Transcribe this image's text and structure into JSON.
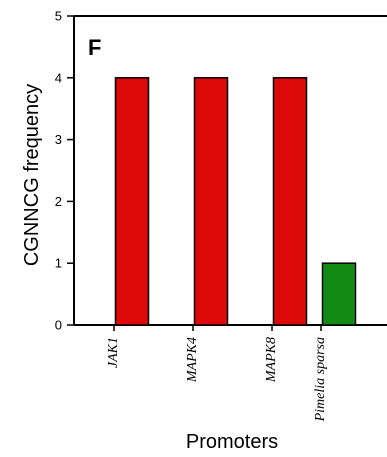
{
  "chart_data": {
    "type": "bar",
    "panel_label": "F",
    "categories": [
      "JAK1",
      "MAPK4",
      "MAPK8",
      "Pimelia sparsa"
    ],
    "values": [
      4,
      4,
      4,
      1
    ],
    "colors": [
      "#dd0a0a",
      "#dd0a0a",
      "#dd0a0a",
      "#128a14"
    ],
    "xlabel": "Promoters",
    "ylabel": "CGNNCG frequency",
    "ylim": [
      0,
      5
    ],
    "yticks": [
      "0",
      "1",
      "2",
      "3",
      "4",
      "5"
    ],
    "grid": false
  }
}
